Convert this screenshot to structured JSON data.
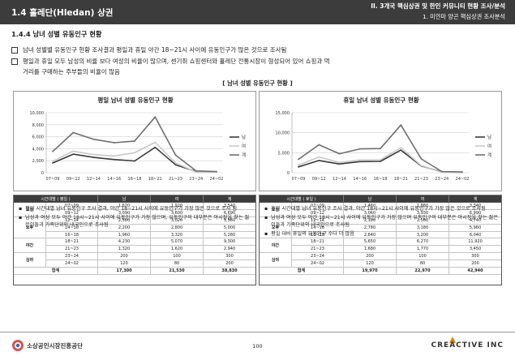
{
  "header": {
    "title": "1.4 홀레단(Hledan) 상권",
    "report_title": "II. 3개국 핵심상권 및 한인 커뮤니티 현황 조사/분석",
    "sub_title": "1. 미얀마 양곤 핵심상권 조사분석"
  },
  "section_title": "1.4.4 남녀 성별 유동인구 현황",
  "bullets": [
    "남녀 성별별 유동인구 현황 조사결과 평일과 휴일 야간 18~21시 사이에 유동인구가 많은 것으로 조사됨",
    "평일과 휴일 모두 남성의 비율 보다 여성의 비율이 많으며, 센기취 쇼핑센터와 홀레단 전통시장이 형성되어 있어 쇼핑과 먹",
    "거리를 구매하는 주부들의 비율이 많음"
  ],
  "figure_title": "[ 남녀 성별 유동인구 현황 ]",
  "colors": {
    "male": "#3a3a3a",
    "female": "#c8c8c8",
    "total": "#6e6e6e",
    "header_bg": "#3c3c3c"
  },
  "panels": [
    {
      "chart_title": "평일 남녀 성별 유동인구 현황",
      "table_header": [
        "시간대별 ( 평일 )",
        "남",
        "여",
        "계"
      ],
      "rows": [
        {
          "group": "오전",
          "time": "07~09",
          "male": "1,620",
          "female": "1,920",
          "total": "3,540"
        },
        {
          "group": "",
          "time": "09~12",
          "male": "3,090",
          "female": "3,600",
          "total": "6,690"
        },
        {
          "group": "오후",
          "time": "12~14",
          "male": "2,560",
          "female": "3,020",
          "total": "5,580"
        },
        {
          "group": "",
          "time": "14~16",
          "male": "2,200",
          "female": "2,800",
          "total": "5,000"
        },
        {
          "group": "",
          "time": "16~18",
          "male": "1,960",
          "female": "3,320",
          "total": "5,280"
        },
        {
          "group": "야간",
          "time": "18~21",
          "male": "4,230",
          "female": "5,070",
          "total": "9,300"
        },
        {
          "group": "",
          "time": "21~23",
          "male": "1,320",
          "female": "1,620",
          "total": "2,940"
        },
        {
          "group": "심야",
          "time": "23~24",
          "male": "200",
          "female": "100",
          "total": "300"
        },
        {
          "group": "",
          "time": "24~02",
          "male": "120",
          "female": "80",
          "total": "200"
        }
      ],
      "total_row": {
        "label": "합계",
        "male": "17,300",
        "female": "21,530",
        "total": "38,830"
      },
      "notes": [
        "평일 시간대별 남녀 유동인구 조사 결과, 야간 18~21시 사이에 유동인구가 가장 많은 것으로 조사 됨",
        "남성과 여성 모두 야간 18시~21시 사이에 유동인구가 가장 많으며, 유동인구의 대부분은 야시장을 찾는 젊은이들과 가족단위의 내국인으로 조사됨"
      ]
    },
    {
      "chart_title": "휴일 남녀 성별 유동인구 현황",
      "table_header": [
        "시간대별 ( 휴일 )",
        "남",
        "여",
        "계"
      ],
      "rows": [
        {
          "group": "오전",
          "time": "07~09",
          "male": "1,460",
          "female": "1,880",
          "total": "3,340"
        },
        {
          "group": "",
          "time": "09~12",
          "male": "3,060",
          "female": "3,930",
          "total": "6,990"
        },
        {
          "group": "오후",
          "time": "12~14",
          "male": "2,180",
          "female": "2,560",
          "total": "4,740"
        },
        {
          "group": "",
          "time": "14~16",
          "male": "2,780",
          "female": "3,180",
          "total": "5,960"
        },
        {
          "group": "",
          "time": "16~18",
          "male": "2,840",
          "female": "3,200",
          "total": "6,040"
        },
        {
          "group": "야간",
          "time": "18~21",
          "male": "5,650",
          "female": "6,270",
          "total": "11,920"
        },
        {
          "group": "",
          "time": "21~23",
          "male": "1,680",
          "female": "1,770",
          "total": "3,450"
        },
        {
          "group": "심야",
          "time": "23~24",
          "male": "200",
          "female": "100",
          "total": "300"
        },
        {
          "group": "",
          "time": "24~02",
          "male": "120",
          "female": "80",
          "total": "200"
        }
      ],
      "total_row": {
        "label": "합계",
        "male": "19,970",
        "female": "22,970",
        "total": "42,940"
      },
      "notes": [
        "휴일 시간대별 남녀 유동인구 조사 결과, 야간 18시~21시 사이에 유동인구가 가장 많은 것으로 조사됨",
        "남성과 여성 모두 야간 18시~21시 사이에 유동인구가 가장 많으며 유동인구의 대부분은 야시장을 찾는 젊은이들과 가족단위의 내국인으로 조사됨",
        "평일 대비 휴일의 유동인구 수다 더 많음"
      ]
    }
  ],
  "chart_data": [
    {
      "type": "line",
      "title": "평일 남녀 성별 유동인구 현황",
      "categories": [
        "07~09",
        "09~12",
        "12~14",
        "14~16",
        "16~18",
        "18~21",
        "21~23",
        "23~24",
        "24~02"
      ],
      "series": [
        {
          "name": "남",
          "values": [
            1620,
            3090,
            2560,
            2200,
            1960,
            4230,
            1320,
            200,
            120
          ]
        },
        {
          "name": "여",
          "values": [
            1920,
            3600,
            3020,
            2800,
            3320,
            5070,
            1620,
            100,
            80
          ]
        },
        {
          "name": "계",
          "values": [
            3540,
            6690,
            5580,
            5000,
            5280,
            9300,
            2940,
            300,
            200
          ]
        }
      ],
      "ylim": [
        0,
        10000
      ],
      "yticks": [
        "0",
        "2,000",
        "4,000",
        "6,000",
        "8,000",
        "10,000"
      ],
      "ytick_values": [
        0,
        2000,
        4000,
        6000,
        8000,
        10000
      ],
      "legend": "right",
      "grid": true
    },
    {
      "type": "line",
      "title": "휴일 남녀 성별 유동인구 현황",
      "categories": [
        "07~09",
        "09~12",
        "12~14",
        "14~16",
        "16~18",
        "18~21",
        "21~23",
        "23~24",
        "24~02"
      ],
      "series": [
        {
          "name": "남",
          "values": [
            1460,
            3060,
            2180,
            2780,
            2840,
            5650,
            1680,
            200,
            120
          ]
        },
        {
          "name": "여",
          "values": [
            1880,
            3930,
            2560,
            3180,
            3200,
            6270,
            1770,
            100,
            80
          ]
        },
        {
          "name": "계",
          "values": [
            3340,
            6990,
            4740,
            5960,
            6040,
            11920,
            3450,
            300,
            200
          ]
        }
      ],
      "ylim": [
        0,
        15000
      ],
      "yticks": [
        "0",
        "5,000",
        "10,000",
        "15,000"
      ],
      "ytick_values": [
        0,
        5000,
        10000,
        15000
      ],
      "legend": "right",
      "grid": true
    }
  ],
  "footer": {
    "org": "소상공인시장진흥공단",
    "page": "100",
    "brand": "CREACTIVE INC"
  }
}
